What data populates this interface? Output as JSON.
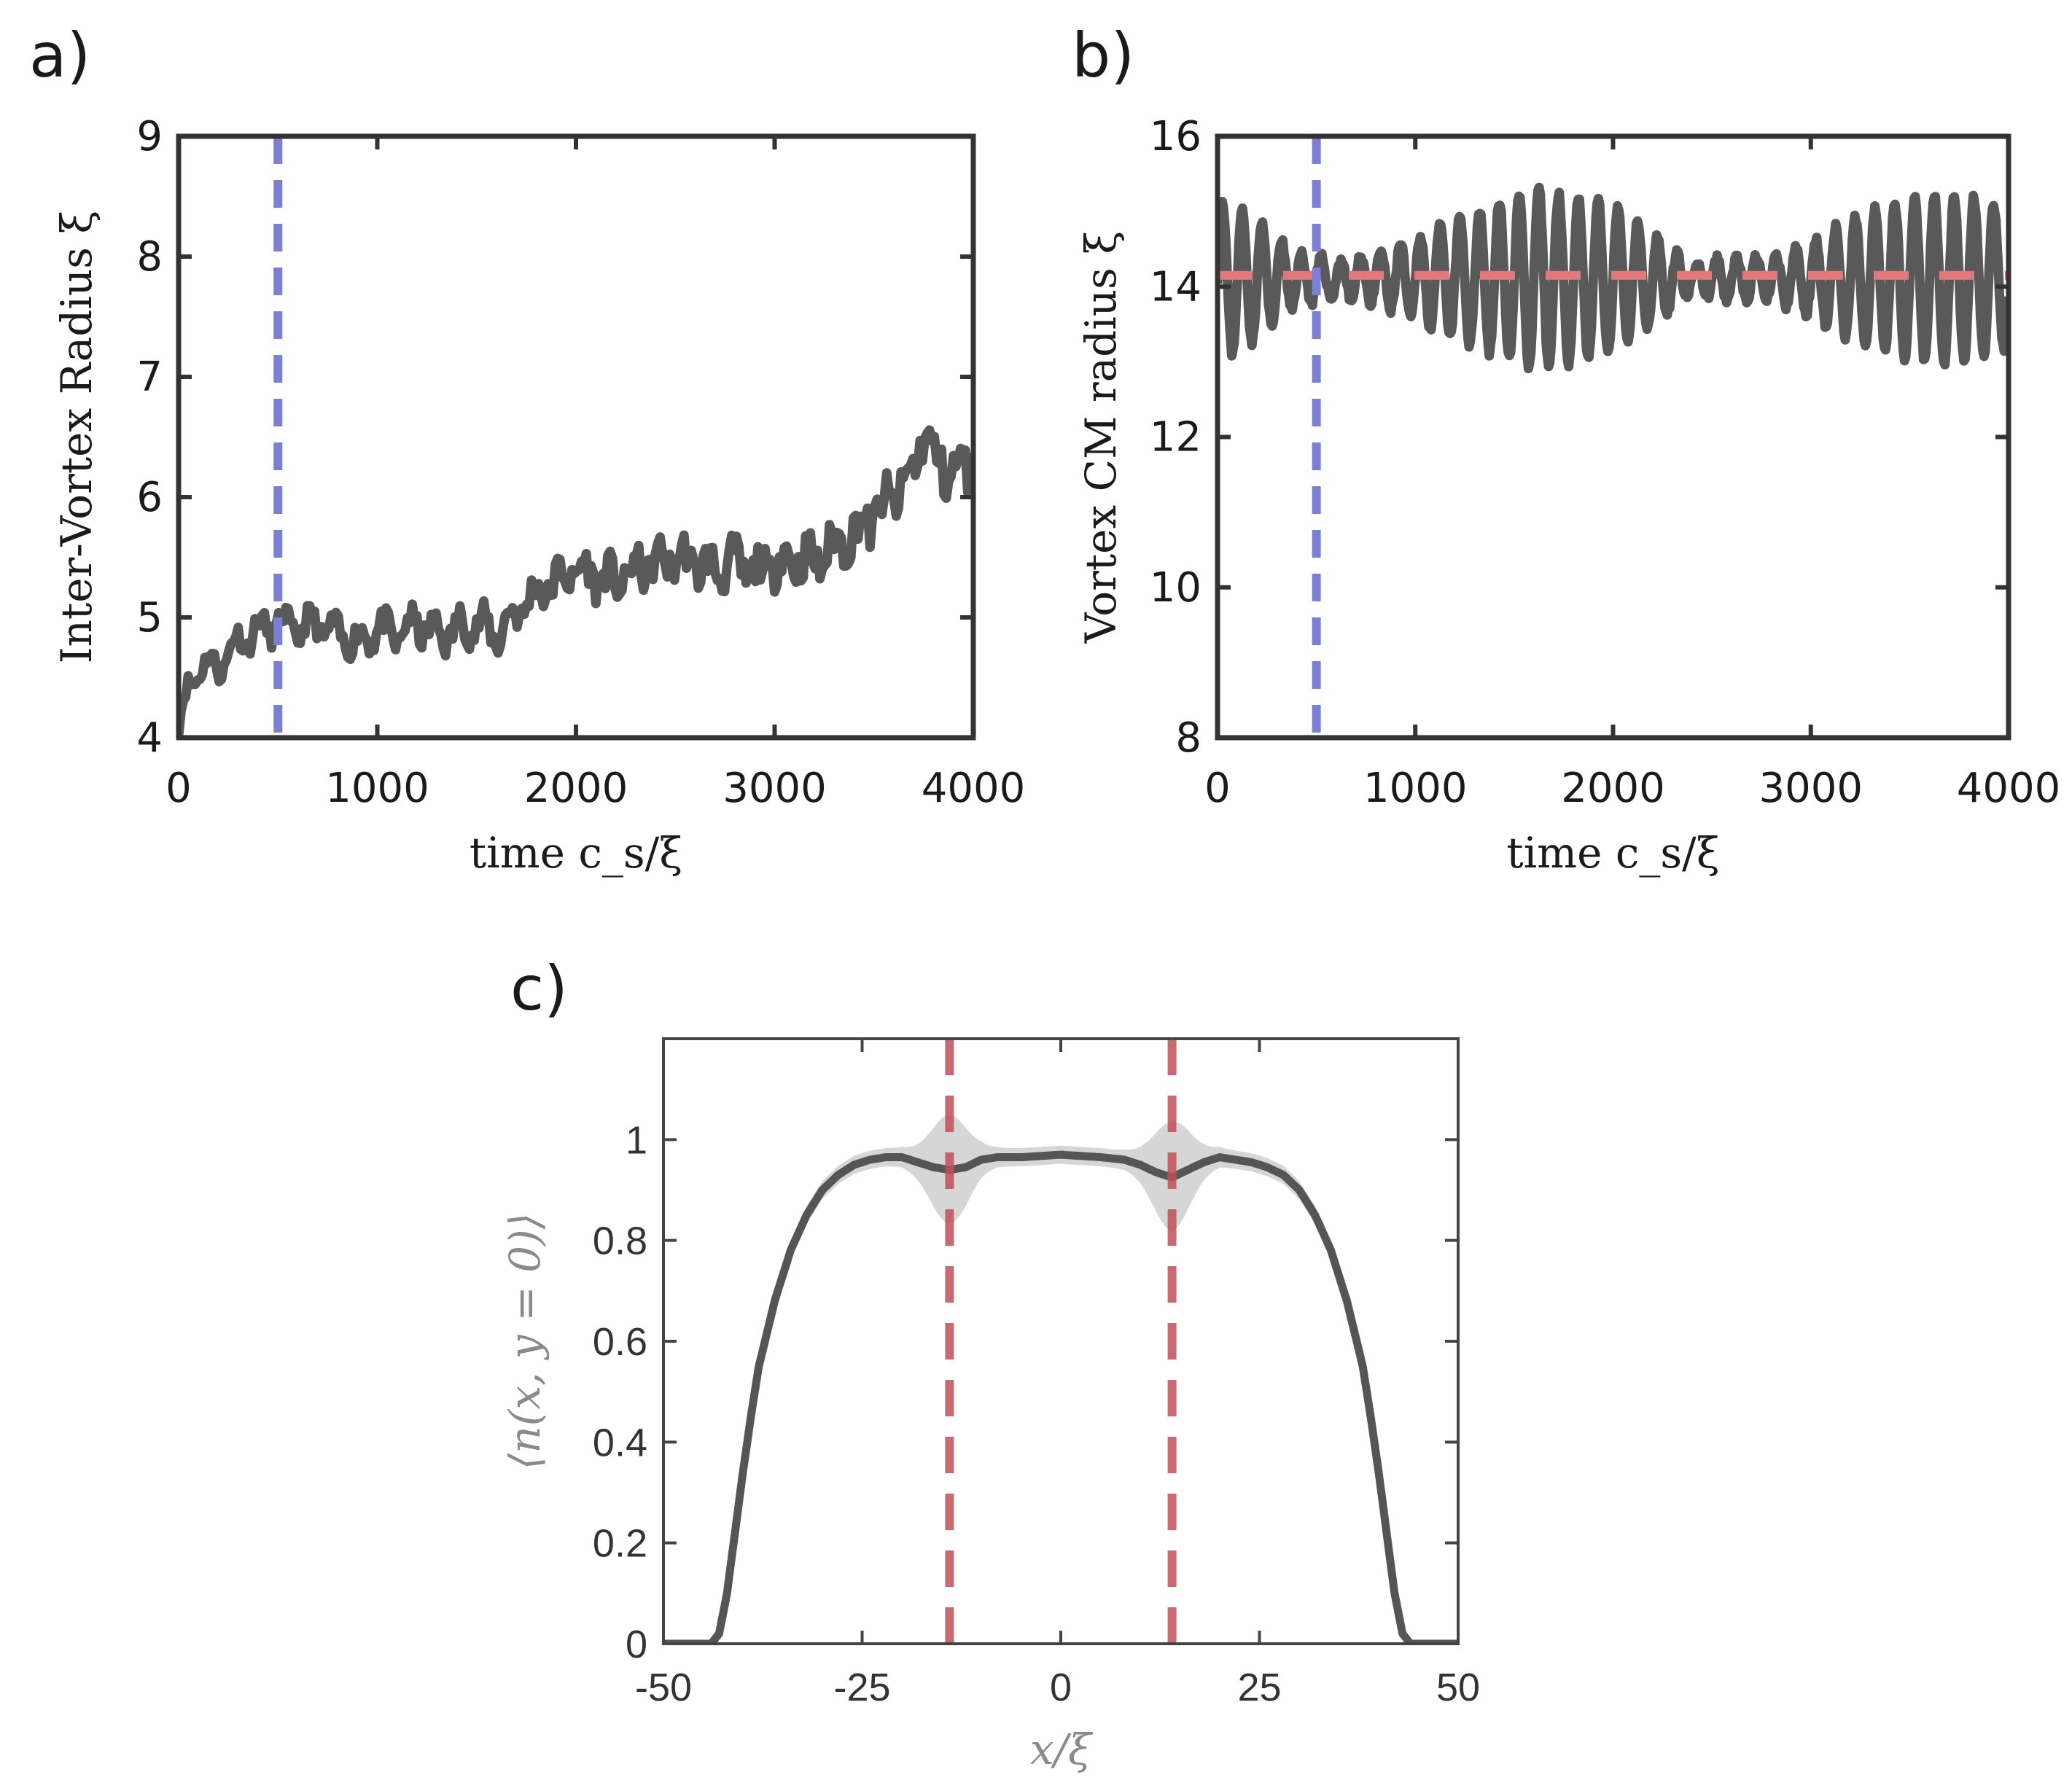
{
  "chart_data": [
    {
      "panel": "a)",
      "type": "line",
      "xlabel": "time c_s/ξ",
      "ylabel": "Inter-Vortex Radius ξ",
      "xlim": [
        0,
        4000
      ],
      "ylim": [
        4,
        9
      ],
      "xticks": [
        "0",
        "1000",
        "2000",
        "3000",
        "4000"
      ],
      "yticks": [
        "4",
        "5",
        "6",
        "7",
        "8",
        "9"
      ],
      "vline_x": 500,
      "vline_color": "#7b7fd6",
      "line_color": "#595959",
      "series": [
        {
          "x": [
            0,
            50,
            100,
            200,
            300,
            400,
            500,
            600,
            700,
            800,
            900,
            1000,
            1100,
            1200,
            1300,
            1400,
            1500,
            1600,
            1700,
            1800,
            1900,
            2000,
            2100,
            2200,
            2300,
            2400,
            2500,
            2600,
            2700,
            2800,
            2900,
            3000,
            3100,
            3200,
            3300,
            3400,
            3500,
            3600,
            3700,
            3750,
            3800,
            3900,
            4000
          ],
          "y": [
            4.1,
            4.4,
            4.6,
            4.6,
            4.8,
            4.9,
            4.95,
            4.9,
            4.95,
            4.85,
            4.8,
            4.9,
            4.85,
            4.95,
            4.85,
            4.9,
            4.95,
            4.85,
            5.05,
            5.2,
            5.3,
            5.4,
            5.35,
            5.3,
            5.4,
            5.45,
            5.5,
            5.45,
            5.4,
            5.45,
            5.35,
            5.45,
            5.5,
            5.45,
            5.6,
            5.7,
            5.85,
            6.0,
            6.2,
            6.6,
            6.3,
            6.2,
            6.3
          ]
        }
      ]
    },
    {
      "panel": "b)",
      "type": "line",
      "xlabel": "time c_s/ξ",
      "ylabel": "Vortex CM radius ξ",
      "xlim": [
        0,
        4000
      ],
      "ylim": [
        8,
        16
      ],
      "xticks": [
        "0",
        "1000",
        "2000",
        "3000",
        "4000"
      ],
      "yticks": [
        "8",
        "10",
        "12",
        "14",
        "16"
      ],
      "vline_x": 500,
      "vline_color": "#7b7fd6",
      "hline_y": 14.15,
      "hline_color": "#e07a7a",
      "line_color": "#595959",
      "series": [
        {
          "oscillation_period": 100,
          "mean": 14.1,
          "envelope_x": [
            0,
            200,
            400,
            600,
            800,
            1000,
            1200,
            1400,
            1600,
            1800,
            2000,
            2200,
            2400,
            2600,
            2800,
            3000,
            3200,
            3400,
            3600,
            3800,
            4000
          ],
          "envelope_amp": [
            1.1,
            0.8,
            0.35,
            0.25,
            0.35,
            0.55,
            0.8,
            1.0,
            1.2,
            1.1,
            1.0,
            0.6,
            0.2,
            0.3,
            0.3,
            0.5,
            0.8,
            1.0,
            1.1,
            1.1,
            0.9
          ]
        }
      ]
    },
    {
      "panel": "c)",
      "type": "line",
      "xlabel": "x/ξ",
      "ylabel": "⟨n(x, y = 0)⟩",
      "xlim": [
        -50,
        50
      ],
      "ylim": [
        0,
        1.2
      ],
      "xticks": [
        "-50",
        "-25",
        "0",
        "25",
        "50"
      ],
      "yticks": [
        "0",
        "0.2",
        "0.4",
        "0.6",
        "0.8",
        "1"
      ],
      "vlines_x": [
        -14,
        14
      ],
      "vline_color": "#c0505a",
      "line_color": "#555555",
      "band_color": "#c8c8c8",
      "series": [
        {
          "x": [
            -50,
            -44,
            -43,
            -42,
            -41,
            -40,
            -39,
            -38,
            -36,
            -34,
            -32,
            -30,
            -28,
            -26,
            -24,
            -22,
            -20,
            -18,
            -16,
            -14,
            -12,
            -10,
            -8,
            -5,
            0,
            5,
            8,
            10,
            12,
            14,
            16,
            18,
            20,
            22,
            24,
            26,
            28,
            30,
            32,
            34,
            36,
            38,
            39,
            40,
            41,
            42,
            43,
            44,
            50
          ],
          "y": [
            0,
            0,
            0.02,
            0.1,
            0.22,
            0.34,
            0.45,
            0.55,
            0.68,
            0.78,
            0.85,
            0.9,
            0.93,
            0.95,
            0.96,
            0.965,
            0.965,
            0.955,
            0.945,
            0.94,
            0.945,
            0.96,
            0.965,
            0.965,
            0.97,
            0.965,
            0.96,
            0.95,
            0.935,
            0.925,
            0.94,
            0.955,
            0.965,
            0.96,
            0.955,
            0.945,
            0.93,
            0.9,
            0.85,
            0.78,
            0.68,
            0.55,
            0.45,
            0.34,
            0.22,
            0.1,
            0.02,
            0,
            0
          ]
        }
      ]
    }
  ]
}
